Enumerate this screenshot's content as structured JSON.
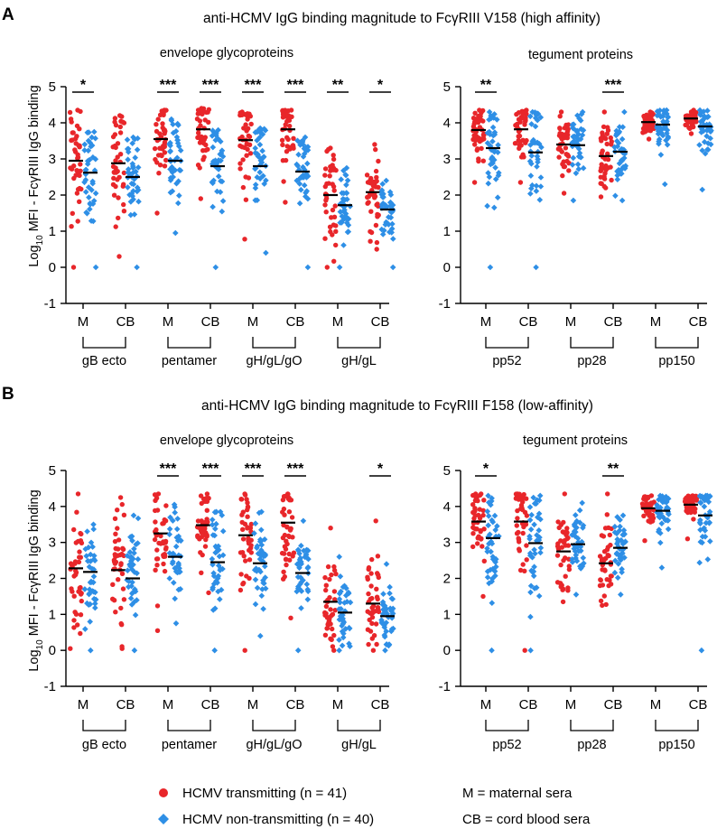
{
  "panels": [
    {
      "letter": "A",
      "title": "anti-HCMV IgG binding magnitude to FcγRIII V158 (high affinity)"
    },
    {
      "letter": "B",
      "title": "anti-HCMV IgG binding magnitude to FcγRIII F158 (low-affinity)"
    }
  ],
  "y_axis_label": {
    "main": "Log",
    "sub": "10",
    "rest": " MFI - FcγRIII IgG binding"
  },
  "legend": {
    "transmitting": "HCMV transmitting (n = 41)",
    "non_transmitting": "HCMV non-transmitting (n = 40)",
    "m_def": "M = maternal sera",
    "cb_def": "CB = cord blood sera"
  },
  "colors": {
    "transmitting": "#e8262a",
    "non_transmitting": "#2e8fe6",
    "axis": "#000000"
  },
  "marker_shapes": {
    "transmitting": "circle",
    "non_transmitting": "diamond"
  },
  "chart_data": [
    {
      "id": "A-envelope",
      "type": "scatter",
      "subtitle": "envelope glycoproteins",
      "ylim": [
        -1,
        5
      ],
      "yticks": [
        -1,
        0,
        1,
        2,
        3,
        4,
        5
      ],
      "grid": false,
      "categories": [
        "M",
        "CB",
        "M",
        "CB",
        "M",
        "CB",
        "M",
        "CB"
      ],
      "groups": [
        "gB ecto",
        "pentamer",
        "gH/gL/gO",
        "gH/gL"
      ],
      "series": [
        {
          "name": "HCMV transmitting (n = 41)",
          "medians": [
            2.95,
            2.88,
            3.55,
            3.82,
            3.52,
            3.82,
            2.0,
            2.08
          ],
          "max": [
            4.35,
            4.2,
            4.35,
            4.4,
            4.3,
            4.35,
            3.3,
            3.4
          ],
          "min": [
            0,
            0.3,
            1.5,
            1.9,
            0.78,
            1.8,
            0,
            0.5
          ]
        },
        {
          "name": "HCMV non-transmitting (n = 40)",
          "medians": [
            2.62,
            2.5,
            2.95,
            2.8,
            2.8,
            2.65,
            1.72,
            1.6
          ],
          "max": [
            3.75,
            3.6,
            4.1,
            3.8,
            3.85,
            3.6,
            2.75,
            2.4
          ],
          "min": [
            0,
            0,
            0.95,
            0,
            0.4,
            0,
            0,
            0
          ]
        }
      ],
      "significance": [
        {
          "group": 0,
          "label": "*"
        },
        {
          "group": 1,
          "label": "***"
        },
        {
          "group": 1,
          "label": "***"
        },
        {
          "group": 2,
          "label": "***"
        },
        {
          "group": 2,
          "label": "***"
        },
        {
          "group": 3,
          "label": "*"
        },
        {
          "group": 3,
          "label": "**"
        }
      ]
    },
    {
      "id": "A-tegument",
      "type": "scatter",
      "subtitle": "tegument proteins",
      "ylim": [
        -1,
        5
      ],
      "yticks": [
        -1,
        0,
        1,
        2,
        3,
        4,
        5
      ],
      "grid": false,
      "categories": [
        "M",
        "CB",
        "M",
        "CB",
        "M",
        "CB"
      ],
      "groups": [
        "pp52",
        "pp28",
        "pp150"
      ],
      "series": [
        {
          "name": "HCMV transmitting (n = 41)",
          "medians": [
            3.8,
            3.82,
            3.4,
            3.08,
            4.02,
            4.12
          ],
          "max": [
            4.35,
            4.35,
            4.3,
            4.3,
            4.3,
            4.35
          ],
          "min": [
            2.35,
            2.35,
            2.05,
            1.95,
            3.55,
            3.7
          ]
        },
        {
          "name": "HCMV non-transmitting (n = 40)",
          "medians": [
            3.3,
            3.18,
            3.38,
            3.2,
            3.95,
            3.9
          ],
          "max": [
            4.3,
            4.3,
            4.3,
            4.3,
            4.35,
            4.35
          ],
          "min": [
            0,
            0,
            1.85,
            1.85,
            2.3,
            2.15
          ]
        }
      ],
      "significance": [
        {
          "label": "**"
        },
        {
          "label": "***"
        },
        {
          "label": "*"
        }
      ]
    },
    {
      "id": "B-envelope",
      "type": "scatter",
      "subtitle": "envelope glycoproteins",
      "ylim": [
        -1,
        5
      ],
      "yticks": [
        -1,
        0,
        1,
        2,
        3,
        4,
        5
      ],
      "grid": false,
      "categories": [
        "M",
        "CB",
        "M",
        "CB",
        "M",
        "CB",
        "M",
        "CB"
      ],
      "groups": [
        "gB ecto",
        "pentamer",
        "gH/gL/gO",
        "gH/gL"
      ],
      "series": [
        {
          "name": "HCMV transmitting (n = 41)",
          "medians": [
            2.28,
            2.23,
            3.25,
            3.48,
            3.2,
            3.55,
            1.35,
            1.3
          ],
          "max": [
            4.35,
            4.25,
            4.35,
            4.35,
            4.35,
            4.35,
            3.4,
            3.6
          ],
          "min": [
            0.05,
            0.05,
            0.55,
            1.6,
            0,
            0.9,
            0,
            0
          ]
        },
        {
          "name": "HCMV non-transmitting (n = 40)",
          "medians": [
            2.18,
            2.0,
            2.6,
            2.45,
            2.42,
            2.15,
            1.05,
            0.95
          ],
          "max": [
            3.5,
            3.75,
            4.05,
            3.85,
            3.85,
            3.6,
            2.6,
            2.4
          ],
          "min": [
            0,
            0,
            0.75,
            0,
            0.4,
            0,
            0,
            0
          ]
        }
      ],
      "significance": [
        {
          "label": "***"
        },
        {
          "label": "***"
        },
        {
          "label": "***"
        },
        {
          "label": "***"
        },
        {
          "label": "*"
        }
      ]
    },
    {
      "id": "B-tegument",
      "type": "scatter",
      "subtitle": "tegument proteins",
      "ylim": [
        -1,
        5
      ],
      "yticks": [
        -1,
        0,
        1,
        2,
        3,
        4,
        5
      ],
      "grid": false,
      "categories": [
        "M",
        "CB",
        "M",
        "CB",
        "M",
        "CB"
      ],
      "groups": [
        "pp52",
        "pp28",
        "pp150"
      ],
      "series": [
        {
          "name": "HCMV transmitting (n = 41)",
          "medians": [
            3.58,
            3.58,
            2.75,
            2.42,
            3.95,
            4.05
          ],
          "max": [
            4.35,
            4.35,
            4.35,
            4.35,
            4.3,
            4.3
          ],
          "min": [
            1.5,
            0,
            1.35,
            1.25,
            3.05,
            3.1
          ]
        },
        {
          "name": "HCMV non-transmitting (n = 40)",
          "medians": [
            3.12,
            2.98,
            2.95,
            2.85,
            3.88,
            3.75
          ],
          "max": [
            4.3,
            4.3,
            4.1,
            3.75,
            4.3,
            4.3
          ],
          "min": [
            0,
            0,
            1.55,
            1.55,
            2.3,
            0
          ]
        }
      ],
      "significance": [
        {
          "label": "*"
        },
        {
          "label": "**"
        }
      ]
    }
  ]
}
